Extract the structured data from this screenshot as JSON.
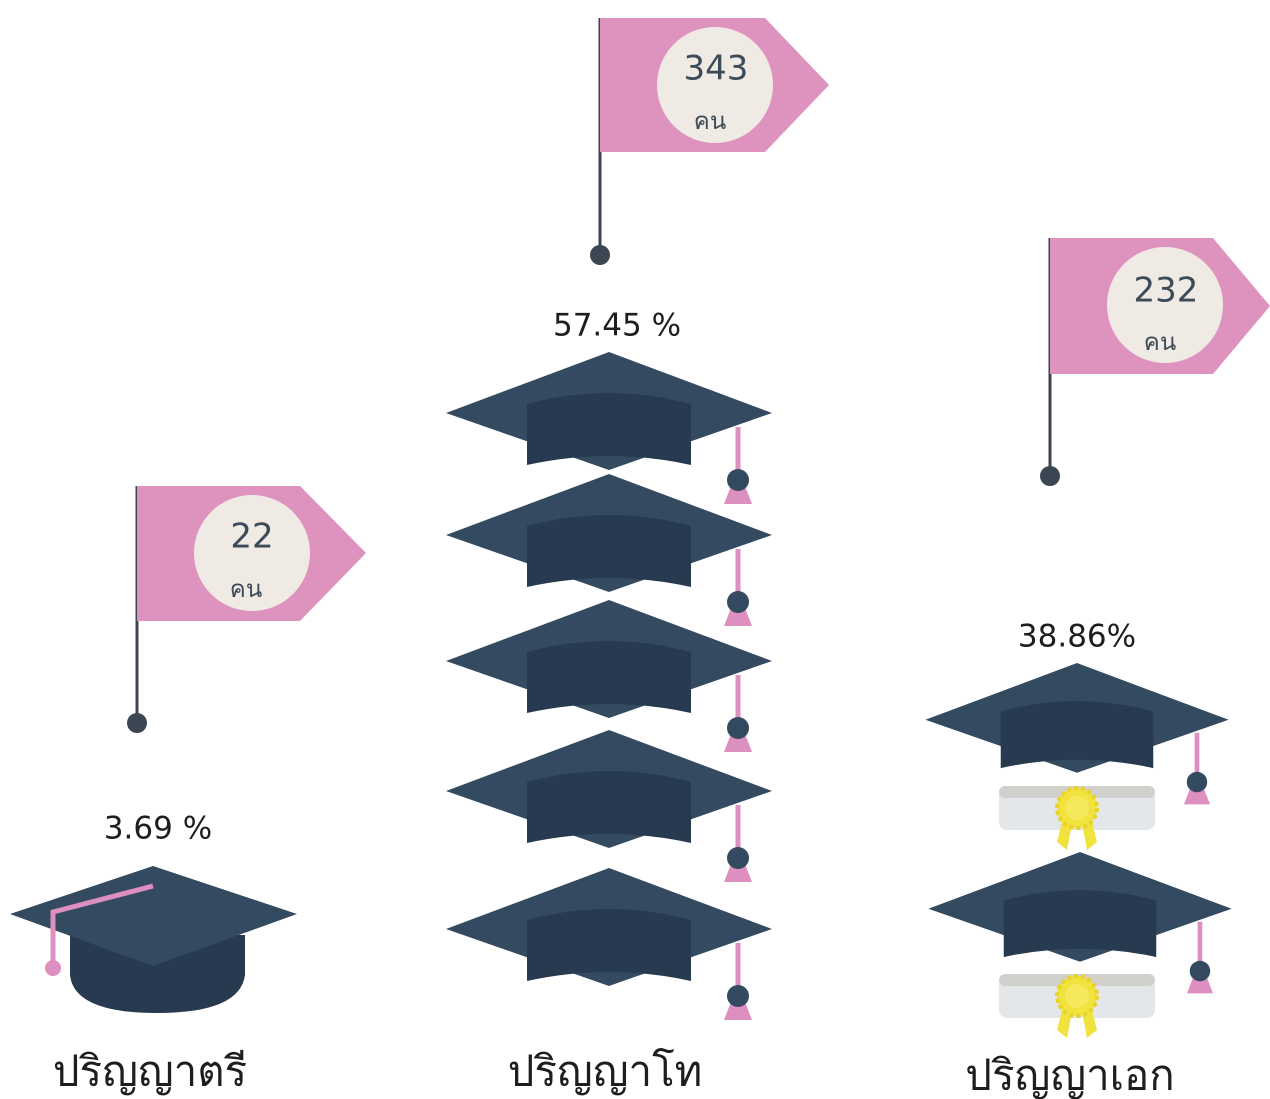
{
  "groups": [
    {
      "label": "ปริญญาตรี",
      "count": 22,
      "unit": "คน",
      "percent": "3.69 %"
    },
    {
      "label": "ปริญญาโท",
      "count": 343,
      "unit": "คน",
      "percent": "57.45 %"
    },
    {
      "label": "ปริญญาเอก",
      "count": 232,
      "unit": "คน",
      "percent": "38.86%"
    }
  ]
}
